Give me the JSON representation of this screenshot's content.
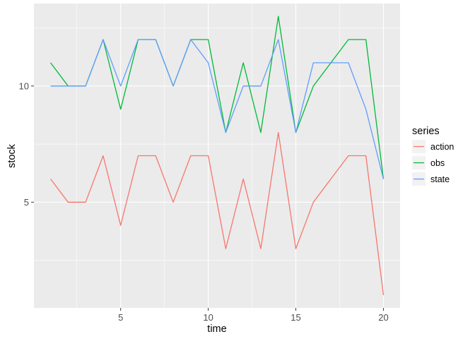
{
  "chart_data": {
    "type": "line",
    "xlabel": "time",
    "ylabel": "stock",
    "x": [
      1,
      2,
      3,
      4,
      5,
      6,
      7,
      8,
      9,
      10,
      11,
      12,
      13,
      14,
      15,
      16,
      17,
      18,
      19,
      20
    ],
    "xlim": [
      0.05,
      20.95
    ],
    "ylim": [
      0.45,
      13.55
    ],
    "x_ticks": [
      5,
      10,
      15,
      20
    ],
    "y_ticks": [
      5,
      10
    ],
    "grid": true,
    "legend": {
      "title": "series",
      "position": "right"
    },
    "series": [
      {
        "name": "action",
        "color": "#F8766D",
        "values": [
          6,
          5,
          5,
          7,
          4,
          7,
          7,
          5,
          7,
          7,
          3,
          6,
          3,
          8,
          3,
          5,
          6,
          7,
          7,
          1
        ]
      },
      {
        "name": "obs",
        "color": "#00BA38",
        "values": [
          11,
          10,
          10,
          12,
          9,
          12,
          12,
          10,
          12,
          12,
          8,
          11,
          8,
          13,
          8,
          10,
          11,
          12,
          12,
          6
        ]
      },
      {
        "name": "state",
        "color": "#619CFF",
        "values": [
          10,
          10,
          10,
          12,
          10,
          12,
          12,
          10,
          12,
          11,
          8,
          10,
          10,
          12,
          8,
          11,
          11,
          11,
          9,
          6
        ]
      }
    ]
  }
}
